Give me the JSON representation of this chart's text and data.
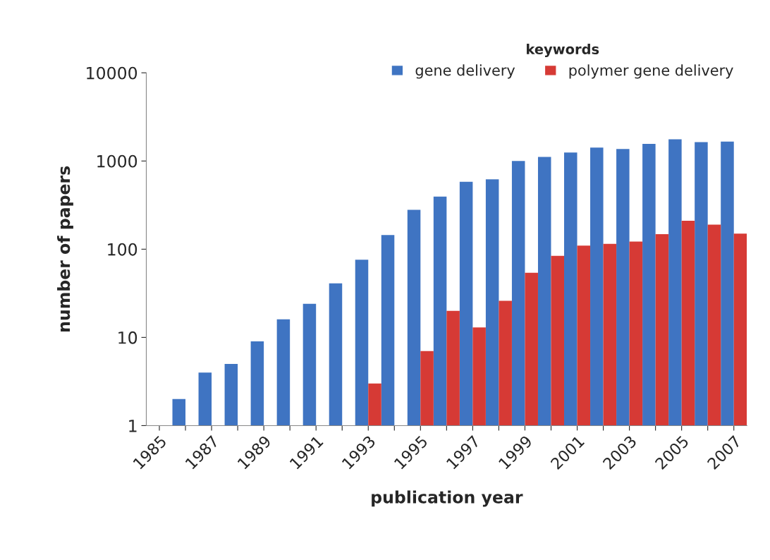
{
  "chart_data": {
    "type": "bar",
    "xlabel": "publication year",
    "ylabel": "number of papers",
    "legend_title": "keywords",
    "legend": "top right",
    "grid": false,
    "log": "y",
    "categories": [
      "1985",
      null,
      "1987",
      null,
      "1989",
      null,
      "1991",
      null,
      "1993",
      null,
      "1995",
      null,
      "1997",
      null,
      "1999",
      null,
      "2001",
      null,
      "2003",
      null,
      "2005",
      null,
      "2007"
    ],
    "series": [
      {
        "name": "gene delivery",
        "color": "#3f74c2",
        "values": [
          null,
          2,
          4,
          5,
          9,
          16,
          24,
          41,
          76,
          145,
          280,
          395,
          580,
          620,
          1000,
          1110,
          1250,
          1420,
          1370,
          1560,
          1760,
          1640,
          1660
        ]
      },
      {
        "name": "polymer gene delivery",
        "color": "#d63a35",
        "values": [
          null,
          null,
          null,
          null,
          null,
          null,
          null,
          null,
          3,
          null,
          7,
          20,
          13,
          26,
          54,
          84,
          110,
          115,
          122,
          148,
          210,
          190,
          150
        ]
      }
    ],
    "ylim": [
      1,
      10000
    ],
    "yticks": [
      1,
      10,
      100,
      1000,
      10000
    ]
  }
}
